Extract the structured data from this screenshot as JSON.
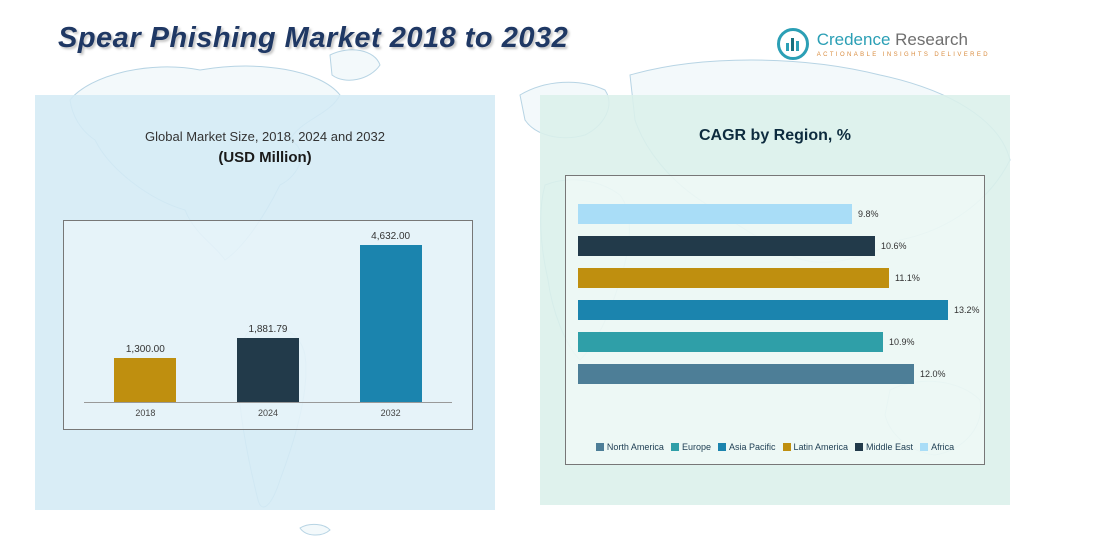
{
  "page": {
    "title": "Spear Phishing Market 2018 to 2032"
  },
  "logo": {
    "brand_first": "Credence",
    "brand_second": "Research",
    "tagline": "Actionable Insights Delivered"
  },
  "left_panel": {
    "subtitle": "Global Market Size, 2018, 2024 and 2032",
    "unit": "(USD Million)"
  },
  "right_panel": {
    "title": "CAGR by Region, %"
  },
  "chart_data": [
    {
      "type": "bar",
      "title": "Global Market Size, 2018, 2024 and 2032 (USD Million)",
      "categories": [
        "2018",
        "2024",
        "2032"
      ],
      "values": [
        1300.0,
        1881.79,
        4632.0
      ],
      "value_labels": [
        "1,300.00",
        "1,881.79",
        "4,632.00"
      ],
      "colors": [
        "#bf8f0f",
        "#223a4a",
        "#1b84ae"
      ],
      "ylabel": "",
      "xlabel": "",
      "ylim": [
        0,
        5000
      ],
      "grid": false
    },
    {
      "type": "bar",
      "orientation": "horizontal",
      "title": "CAGR by Region, %",
      "categories": [
        "Africa",
        "Middle East",
        "Latin America",
        "Asia Pacific",
        "Europe",
        "North America"
      ],
      "values": [
        9.8,
        10.6,
        11.1,
        13.2,
        10.9,
        12.0
      ],
      "value_labels": [
        "9.8%",
        "10.6%",
        "11.1%",
        "13.2%",
        "10.9%",
        "12.0%"
      ],
      "colors": [
        "#a9ddf7",
        "#223a4a",
        "#bf8f0f",
        "#1b84ae",
        "#2f9fa8",
        "#4d7e97"
      ],
      "xlim": [
        0,
        14
      ],
      "grid": false,
      "legend_position": "bottom",
      "legend": [
        {
          "label": "North America",
          "color": "#4d7e97"
        },
        {
          "label": "Europe",
          "color": "#2f9fa8"
        },
        {
          "label": "Asia Pacific",
          "color": "#1b84ae"
        },
        {
          "label": "Latin America",
          "color": "#bf8f0f"
        },
        {
          "label": "Middle East",
          "color": "#223a4a"
        },
        {
          "label": "Africa",
          "color": "#a9ddf7"
        }
      ]
    }
  ]
}
